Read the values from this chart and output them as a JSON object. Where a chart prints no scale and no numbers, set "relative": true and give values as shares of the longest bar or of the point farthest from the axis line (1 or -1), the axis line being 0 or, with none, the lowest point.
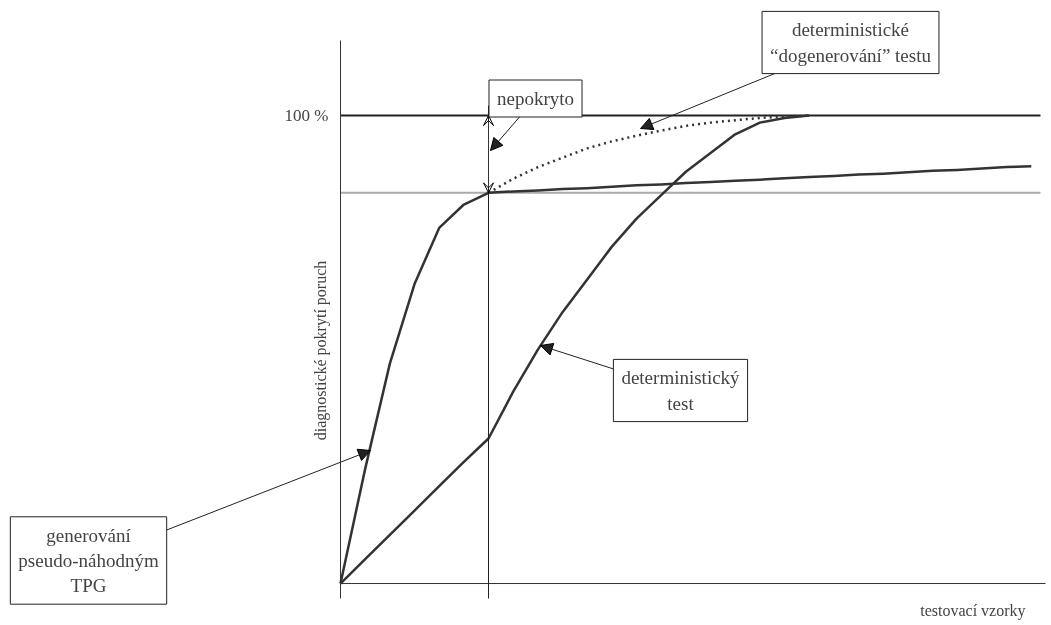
{
  "chart_data": {
    "type": "line",
    "relative": true,
    "xlabel": "testovací vzorky",
    "ylabel": "diagnostické pokrytí poruch",
    "grid": false,
    "marker": "none",
    "categories": [
      null,
      null,
      null,
      null,
      null,
      null,
      null,
      null,
      null,
      null,
      null,
      null,
      null,
      null,
      null,
      null,
      null,
      null,
      null,
      null,
      null,
      null,
      null,
      null,
      null,
      null,
      null,
      null,
      null
    ],
    "series": [
      {
        "color": "#333333",
        "values": [
          0,
          0.245,
          0.47,
          0.64,
          0.76,
          0.81,
          0.835,
          0.838,
          0.84,
          0.843,
          0.845,
          0.848,
          0.851,
          0.853,
          0.856,
          0.858,
          0.861,
          0.863,
          0.866,
          0.869,
          0.871,
          0.874,
          0.876,
          0.879,
          0.882,
          0.884,
          0.887,
          0.89,
          0.892
        ]
      },
      {
        "color": "#333333",
        "line_style": "dotted",
        "values": [
          null,
          null,
          null,
          null,
          null,
          null,
          0.835,
          0.865,
          0.89,
          0.91,
          0.93,
          0.945,
          0.957,
          0.968,
          0.978,
          0.985,
          0.99,
          0.995,
          0.998,
          1.0,
          null,
          null,
          null,
          null,
          null,
          null,
          null,
          null,
          null
        ]
      },
      {
        "color": "#333333",
        "values": [
          0,
          0.052,
          0.104,
          0.156,
          0.208,
          0.26,
          0.31,
          0.41,
          0.5,
          0.58,
          0.65,
          0.72,
          0.78,
          0.83,
          0.88,
          0.92,
          0.96,
          0.985,
          0.995,
          1.0,
          null,
          null,
          null,
          null,
          null,
          null,
          null,
          null,
          null
        ]
      }
    ],
    "ref_lines": [
      {
        "axis": "y",
        "value": 1,
        "label": "100 %",
        "color": "#222222"
      },
      {
        "axis": "y",
        "value": 0.835,
        "color": "#aaaaaa"
      }
    ],
    "annotations": [
      "nepokryto",
      "deterministické\n“dogenerování” testu",
      "deterministický\ntest",
      "generování\npseudo-náhodným\nTPG"
    ]
  }
}
